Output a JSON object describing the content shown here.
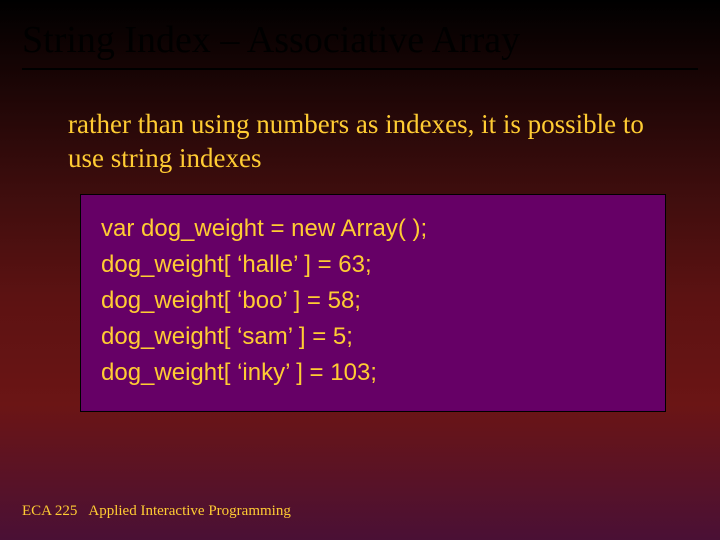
{
  "slide": {
    "title": "String Index – Associative Array",
    "title_color": "#000000",
    "title_fontsize": 38,
    "description": "rather than using numbers as indexes, it is possible to use string indexes",
    "description_color": "#ffcc33",
    "description_fontsize": 27,
    "code": {
      "background_color": "#660066",
      "text_color": "#ffcc33",
      "font_family": "Arial",
      "fontsize": 24,
      "lines": [
        "var dog_weight = new Array( );",
        "dog_weight[ ‘halle’ ] = 63;",
        "dog_weight[ ‘boo’ ] = 58;",
        "dog_weight[ ‘sam’ ] = 5;",
        "dog_weight[ ‘inky’ ] = 103;"
      ]
    },
    "footer": {
      "course_code": "ECA 225",
      "course_name": "Applied Interactive Programming",
      "color": "#ffcc33",
      "fontsize": 15
    },
    "background_gradient": [
      "#000000",
      "#3d0d0d",
      "#6b1515",
      "#4a1035"
    ]
  }
}
